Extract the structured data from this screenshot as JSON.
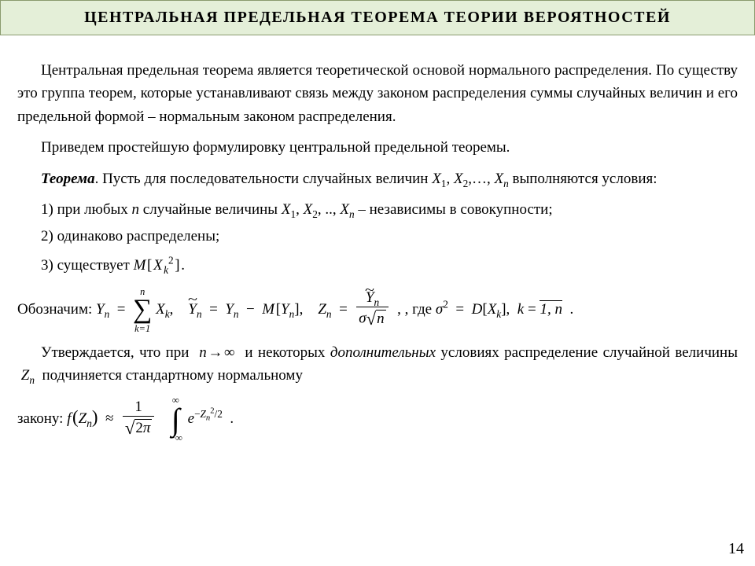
{
  "colors": {
    "title_bg": "#e4efd8",
    "title_border": "#8a9b6e",
    "page_bg": "#ffffff",
    "text": "#000000"
  },
  "title": "ЦЕНТРАЛЬНАЯ  ПРЕДЕЛЬНАЯ  ТЕОРЕМА  ТЕОРИИ  ВЕРОЯТНОСТЕЙ",
  "para1": "Центральная предельная теорема является теоретической основой нормального распределения. По существу это группа теорем, которые устанавливают связь между законом распределения суммы случайных величин и его предельной формой – нормальным законом распределения.",
  "para2": "Приведем простейшую формулировку центральной предельной теоремы.",
  "theoremLabel": "Теорема",
  "theoremTextA": ". Пусть для последовательности случайных величин ",
  "theoremSeq": "X",
  "theoremTextB": " выполняются условия:",
  "item1a": "1) при любых ",
  "item1b": " случайные величины ",
  "item1c": " – независимы в совокупности;",
  "item2": "2) одинаково распределены;",
  "item3": "3) существует ",
  "notationLabel": "Обозначим: ",
  "notationWhere": ",  где ",
  "assert1a": "Утверждается, что при ",
  "assert1b": " и некоторых ",
  "assert1Add": "дополнительных",
  "assert1c": " условиях распределение случайной величины ",
  "assert1d": " подчиняется стандартному нормальному ",
  "lawLabel": "закону: ",
  "pageNumber": "14",
  "math": {
    "n": "n",
    "inf": "∞",
    "arrow": "→",
    "M": "M",
    "D": "D",
    "sigma2": "σ",
    "k": "k",
    "one": "1",
    "two": "2",
    "pi": "π",
    "e": "e",
    "X": "X",
    "Y": "Y",
    "Z": "Z",
    "f": "f",
    "seqEll": "…",
    "dots": "..",
    "comma": ",",
    "period": ".",
    "approx": "≈",
    "eq": "=",
    "minus": "−",
    "lb": "[",
    "rb": "]",
    "lp": "(",
    "rp": ")",
    "sum_lo": "k=1",
    "sum_hi": "n",
    "int_lo": "−∞",
    "int_hi": "∞",
    "half": "/2",
    "krange": "1, n"
  }
}
